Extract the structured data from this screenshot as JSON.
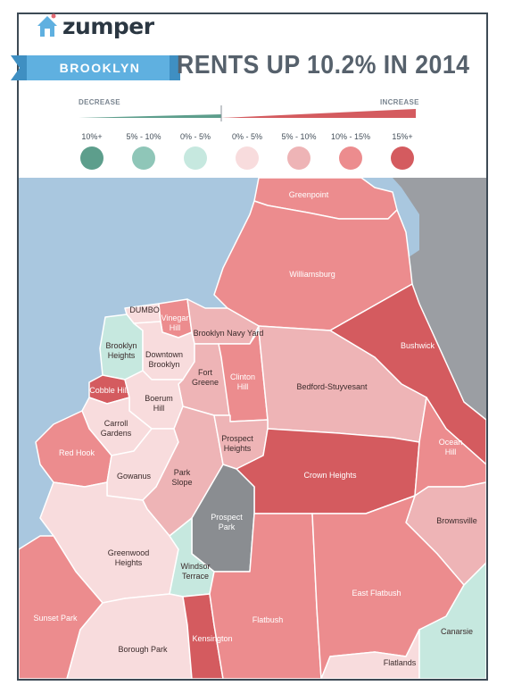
{
  "brand": {
    "name": "zumper",
    "icon": "house-icon",
    "accent": "#5fb0e0"
  },
  "header": {
    "borough": "BROOKLYN",
    "headline": "RENTS UP 10.2% IN 2014"
  },
  "legend": {
    "decrease_label": "DECREASE",
    "increase_label": "INCREASE",
    "bins": [
      {
        "label": "10%+",
        "color": "#5d9e8c"
      },
      {
        "label": "5% - 10%",
        "color": "#8fc6b8"
      },
      {
        "label": "0% - 5%",
        "color": "#c6e8df"
      },
      {
        "label": "0% - 5%",
        "color": "#f8dcdd"
      },
      {
        "label": "5% - 10%",
        "color": "#eeb4b6"
      },
      {
        "label": "10% - 15%",
        "color": "#ec8c8e"
      },
      {
        "label": "15%+",
        "color": "#d45b5f"
      }
    ]
  },
  "colors": {
    "water": "#a9c7df",
    "land_other": "#9b9ea3",
    "park": "#8a8d91",
    "boundary": "#ffffff"
  },
  "neighborhoods": [
    {
      "name": "Greenpoint",
      "bin": "10% - 15%"
    },
    {
      "name": "Williamsburg",
      "bin": "10% - 15%"
    },
    {
      "name": "Bushwick",
      "bin": "15%+"
    },
    {
      "name": "DUMBO",
      "bin": "0% - 5%"
    },
    {
      "name": "Vinegar Hill",
      "bin": "10% - 15%"
    },
    {
      "name": "Brooklyn Navy Yard",
      "bin": "5% - 10%"
    },
    {
      "name": "Brooklyn Heights",
      "bin": "0% - 5% decrease"
    },
    {
      "name": "Downtown Brooklyn",
      "bin": "0% - 5%"
    },
    {
      "name": "Fort Greene",
      "bin": "5% - 10%"
    },
    {
      "name": "Clinton Hill",
      "bin": "10% - 15%"
    },
    {
      "name": "Bedford-Stuyvesant",
      "bin": "5% - 10%"
    },
    {
      "name": "Cobble Hill",
      "bin": "15%+"
    },
    {
      "name": "Boerum Hill",
      "bin": "0% - 5%"
    },
    {
      "name": "Carroll Gardens",
      "bin": "0% - 5%"
    },
    {
      "name": "Red Hook",
      "bin": "10% - 15%"
    },
    {
      "name": "Gowanus",
      "bin": "0% - 5%"
    },
    {
      "name": "Park Slope",
      "bin": "5% - 10%"
    },
    {
      "name": "Prospect Heights",
      "bin": "5% - 10%"
    },
    {
      "name": "Crown Heights",
      "bin": "15%+"
    },
    {
      "name": "Ocean Hill",
      "bin": "10% - 15%"
    },
    {
      "name": "Brownsville",
      "bin": "5% - 10%"
    },
    {
      "name": "Prospect Park",
      "bin": "park"
    },
    {
      "name": "Greenwood Heights",
      "bin": "0% - 5%"
    },
    {
      "name": "Windsor Terrace",
      "bin": "0% - 5% decrease"
    },
    {
      "name": "Sunset Park",
      "bin": "10% - 15%"
    },
    {
      "name": "Borough Park",
      "bin": "0% - 5%"
    },
    {
      "name": "Kensington",
      "bin": "15%+"
    },
    {
      "name": "Flatbush",
      "bin": "10% - 15%"
    },
    {
      "name": "East Flatbush",
      "bin": "10% - 15%"
    },
    {
      "name": "Flatlands",
      "bin": "0% - 5%"
    },
    {
      "name": "Canarsie",
      "bin": "0% - 5% decrease"
    }
  ]
}
